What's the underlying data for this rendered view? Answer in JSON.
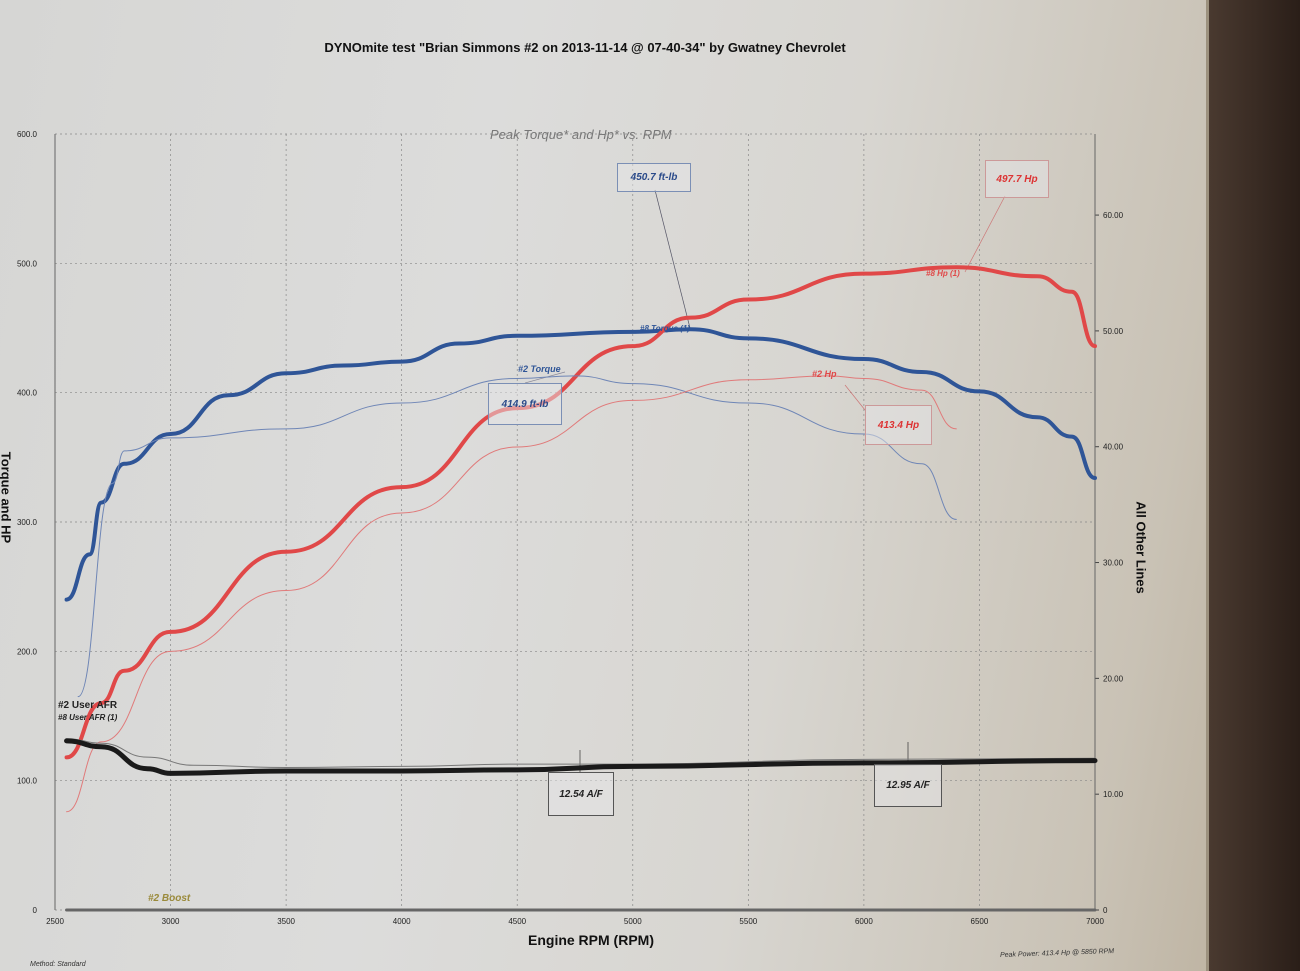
{
  "title": "DYNOmite test \"Brian Simmons #2 on 2013-11-14 @ 07-40-34\" by Gwatney Chevrolet",
  "footer": {
    "peak_power": "Peak Power: 413.4 Hp @ 5850 RPM",
    "method": "Method: Standard"
  },
  "annotations": {
    "torque8": "450.7 ft-lb",
    "torque2": "414.9 ft-lb",
    "hp8": "497.7 Hp",
    "hp2": "413.4 Hp",
    "afr_a": "12.54 A/F",
    "afr_b": "12.95 A/F"
  },
  "chart_data": {
    "type": "line",
    "title": "Peak Torque* and Hp* vs. RPM",
    "xlabel": "Engine RPM (RPM)",
    "ylabel": "Torque and HP",
    "ylabel_right": "All Other Lines",
    "xlim": [
      2500,
      7000
    ],
    "ylim": [
      0,
      600
    ],
    "ylim_right": [
      0,
      67
    ],
    "grid": true,
    "x_ticks": [
      "2500",
      "3000",
      "3500",
      "4000",
      "4500",
      "5000",
      "5500",
      "6000",
      "6500",
      "7000"
    ],
    "y_ticks": [
      "0",
      "100.0",
      "200.0",
      "300.0",
      "400.0",
      "500.0",
      "600.0"
    ],
    "y_ticks_right": [
      "0",
      "10.00",
      "20.00",
      "30.00",
      "40.00",
      "50.00",
      "60.00"
    ],
    "colors": {
      "torque": "#2f5597",
      "hp": "#e04848",
      "afr": "#1a1a1a",
      "boost": "#555555"
    },
    "series": [
      {
        "name": "#8 Torque (1)",
        "axis": "left",
        "color": "#2f5597",
        "width": 4,
        "x": [
          2550,
          2650,
          2700,
          2800,
          3000,
          3250,
          3500,
          3750,
          4000,
          4250,
          4500,
          5000,
          5250,
          5500,
          6000,
          6250,
          6500,
          6750,
          6900,
          7000
        ],
        "y": [
          240,
          275,
          315,
          345,
          368,
          398,
          415,
          421,
          424,
          438,
          444,
          447,
          449,
          442,
          426,
          416,
          401,
          381,
          366,
          334
        ]
      },
      {
        "name": "#8 Hp (1)",
        "axis": "left",
        "color": "#e04848",
        "width": 4,
        "x": [
          2550,
          2700,
          2800,
          3000,
          3500,
          4000,
          4500,
          5000,
          5250,
          5500,
          6000,
          6400,
          6750,
          6900,
          7000
        ],
        "y": [
          118,
          160,
          185,
          215,
          277,
          327,
          388,
          436,
          458,
          472,
          492,
          497,
          490,
          478,
          436
        ]
      },
      {
        "name": "#2 Torque",
        "axis": "left",
        "color": "#6f86b6",
        "width": 1,
        "x": [
          2600,
          2750,
          2800,
          3000,
          3500,
          4000,
          4500,
          4750,
          5000,
          5500,
          6000,
          6250,
          6400
        ],
        "y": [
          165,
          330,
          355,
          365,
          372,
          392,
          411,
          413,
          407,
          392,
          368,
          345,
          302
        ]
      },
      {
        "name": "#2 Hp",
        "axis": "left",
        "color": "#e07a7a",
        "width": 1,
        "x": [
          2550,
          2700,
          3000,
          3500,
          4000,
          4500,
          5000,
          5500,
          5850,
          6000,
          6250,
          6400
        ],
        "y": [
          76,
          130,
          200,
          247,
          307,
          358,
          394,
          410,
          413,
          411,
          402,
          372
        ]
      },
      {
        "name": "#2 User AFR",
        "axis": "right",
        "color": "#777777",
        "width": 1,
        "x": [
          2550,
          2700,
          2900,
          3100,
          3500,
          4000,
          4500,
          5000,
          6000,
          7000
        ],
        "y": [
          14.8,
          14.4,
          13.2,
          12.5,
          12.3,
          12.4,
          12.6,
          12.6,
          13.0,
          13.1
        ]
      },
      {
        "name": "#8 User AFR (1)",
        "axis": "right",
        "color": "#1a1a1a",
        "width": 5,
        "x": [
          2550,
          2700,
          2900,
          3000,
          3500,
          4000,
          4500,
          5000,
          6000,
          7000
        ],
        "y": [
          14.6,
          14.1,
          12.2,
          11.8,
          12.0,
          12.0,
          12.1,
          12.4,
          12.7,
          12.9
        ]
      },
      {
        "name": "#2 Boost",
        "axis": "right",
        "color": "#666666",
        "width": 3,
        "x": [
          2550,
          7000
        ],
        "y": [
          0,
          0
        ]
      }
    ]
  }
}
